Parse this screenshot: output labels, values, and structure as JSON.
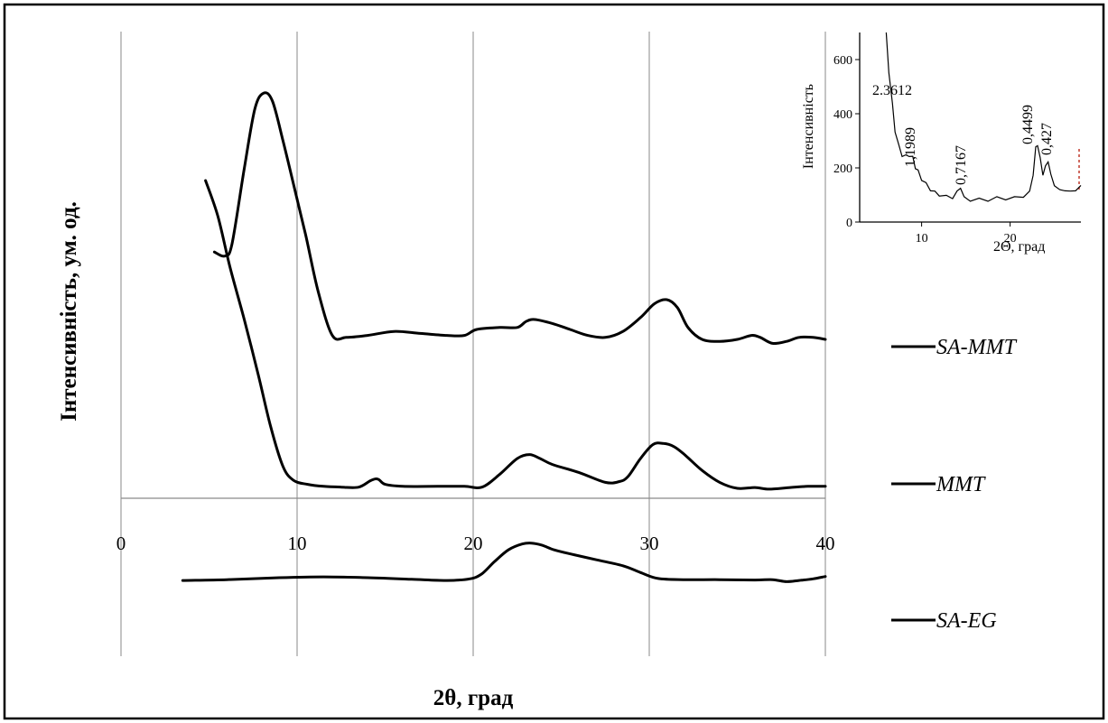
{
  "chart_data": {
    "type": "line",
    "xlabel": "2θ, град",
    "ylabel": "Інтенсивність, ум. од.",
    "xlim": [
      0,
      40
    ],
    "x_ticks": [
      "0",
      "10",
      "20",
      "30",
      "40"
    ],
    "grid": "vertical",
    "legend_placement": "right",
    "series": [
      {
        "name": "SA-MMT",
        "color": "#000000",
        "x": [
          5.3,
          5.9,
          6.3,
          7.0,
          7.6,
          8.1,
          8.6,
          9.2,
          9.8,
          10.5,
          11.2,
          12.0,
          12.8,
          14.0,
          15.5,
          17.0,
          18.5,
          19.5,
          20.2,
          21.5,
          22.5,
          23.0,
          23.5,
          24.5,
          25.5,
          26.5,
          27.5,
          28.5,
          29.5,
          30.3,
          31.0,
          31.6,
          32.2,
          33.0,
          34.0,
          35.0,
          35.8,
          36.3,
          37.0,
          37.8,
          38.5,
          39.3,
          40.0
        ],
        "y": [
          62.0,
          61.0,
          64.0,
          83.0,
          98.0,
          102.0,
          100.0,
          90.0,
          79.0,
          66.0,
          52.0,
          41.0,
          40.5,
          41.0,
          42.0,
          41.5,
          41.0,
          41.0,
          42.5,
          43.0,
          43.0,
          44.5,
          45.0,
          44.0,
          42.5,
          41.0,
          40.5,
          42.0,
          45.5,
          49.0,
          50.0,
          48.0,
          43.0,
          40.0,
          39.5,
          40.0,
          41.0,
          40.5,
          39.0,
          39.5,
          40.5,
          40.5,
          40.0
        ]
      },
      {
        "name": "MMT",
        "color": "#000000",
        "x": [
          4.8,
          5.5,
          6.2,
          7.0,
          7.8,
          8.5,
          9.2,
          9.8,
          10.6,
          11.5,
          12.5,
          13.5,
          14.2,
          14.6,
          15.0,
          16.0,
          18.0,
          19.5,
          20.5,
          21.5,
          22.5,
          23.2,
          23.8,
          24.5,
          26.0,
          27.5,
          28.3,
          28.8,
          29.5,
          30.2,
          30.8,
          31.4,
          32.0,
          33.0,
          34.0,
          35.0,
          36.0,
          36.8,
          38.0,
          39.0,
          40.0
        ],
        "y": [
          80.0,
          71.0,
          58.0,
          45.0,
          31.0,
          18.0,
          8.0,
          4.5,
          3.5,
          3.0,
          2.8,
          2.8,
          4.5,
          4.8,
          3.5,
          3.0,
          3.0,
          3.0,
          2.8,
          6.0,
          10.0,
          11.0,
          10.0,
          8.5,
          6.5,
          4.0,
          4.2,
          5.5,
          10.0,
          13.5,
          13.8,
          13.0,
          11.0,
          7.0,
          4.0,
          2.5,
          2.7,
          2.3,
          2.7,
          3.0,
          3.0
        ]
      },
      {
        "name": "SA-EG",
        "color": "#000000",
        "x": [
          3.5,
          6.0,
          9.0,
          11.5,
          14.0,
          16.5,
          18.5,
          19.8,
          20.5,
          21.2,
          22.0,
          22.8,
          23.3,
          23.9,
          24.6,
          25.5,
          27.0,
          28.5,
          29.5,
          30.5,
          32.0,
          34.0,
          36.0,
          37.0,
          37.8,
          38.5,
          39.3,
          40.0
        ],
        "y": [
          -20.7,
          -20.5,
          -20.0,
          -19.8,
          -20.0,
          -20.4,
          -20.7,
          -20.3,
          -19.0,
          -16.0,
          -13.0,
          -11.5,
          -11.3,
          -11.8,
          -13.0,
          -14.0,
          -15.5,
          -17.0,
          -18.7,
          -20.2,
          -20.5,
          -20.5,
          -20.6,
          -20.5,
          -21.0,
          -20.7,
          -20.3,
          -19.7
        ]
      }
    ],
    "legend": [
      "SA-MMT",
      "MMT",
      "SA-EG"
    ],
    "inset": {
      "type": "line",
      "xlabel": "2Θ, град",
      "ylabel": "Інтенсивність",
      "xlim": [
        3,
        28
      ],
      "ylim": [
        0,
        700
      ],
      "x_ticks": [
        "10",
        "20"
      ],
      "y_ticks": [
        "0",
        "200",
        "400",
        "600"
      ],
      "x": [
        6.0,
        6.3,
        6.7,
        7.0,
        7.4,
        7.8,
        8.2,
        8.6,
        9.0,
        9.3,
        9.6,
        10.0,
        10.5,
        11.0,
        11.5,
        12.0,
        12.8,
        13.5,
        14.0,
        14.4,
        14.8,
        15.5,
        16.5,
        17.5,
        18.5,
        19.5,
        20.5,
        21.5,
        22.2,
        22.6,
        22.9,
        23.1,
        23.4,
        23.7,
        24.0,
        24.3,
        24.6,
        25.0,
        25.6,
        26.2,
        26.8,
        27.4,
        28.0
      ],
      "y": [
        700,
        560,
        430,
        340,
        280,
        250,
        240,
        250,
        235,
        205,
        185,
        160,
        140,
        120,
        110,
        100,
        95,
        90,
        110,
        130,
        90,
        80,
        85,
        80,
        90,
        85,
        90,
        95,
        110,
        180,
        270,
        290,
        230,
        180,
        200,
        230,
        170,
        140,
        115,
        120,
        110,
        120,
        130
      ],
      "peaks": [
        {
          "label": "2.3612",
          "x": 7.2
        },
        {
          "label": "1,1989",
          "x": 8.9
        },
        {
          "label": "0,7167",
          "x": 14.0
        },
        {
          "label": "0,4499",
          "x": 23.1
        },
        {
          "label": "0,427",
          "x": 24.4
        }
      ]
    }
  }
}
